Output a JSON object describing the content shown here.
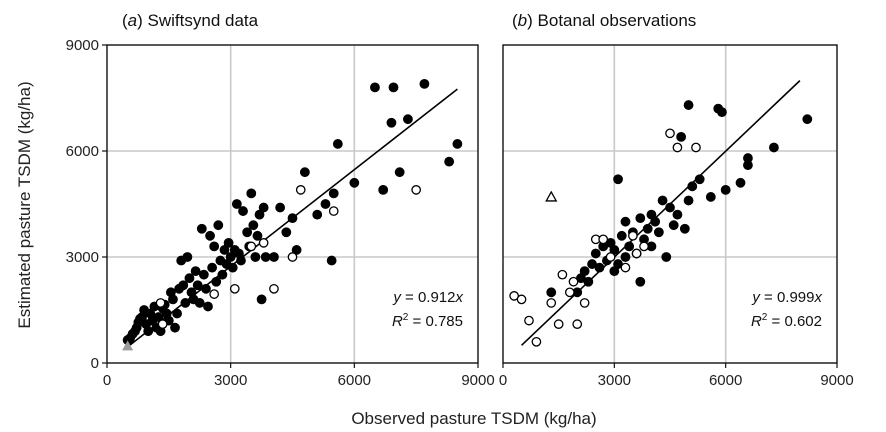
{
  "chart_data": [
    {
      "type": "scatter",
      "panel_label": "a",
      "title": "Swiftsynd data",
      "xlim": [
        0,
        9000
      ],
      "ylim": [
        0,
        9000
      ],
      "xticks": [
        "0",
        "3000",
        "6000",
        "9000"
      ],
      "yticks": [
        "0",
        "3000",
        "6000",
        "9000"
      ],
      "grid": true,
      "fit": {
        "slope": 0.912,
        "x_from": 450,
        "x_to": 8500
      },
      "equation": {
        "y_var": "y",
        "y_rest": " = 0.912",
        "y_x": "x",
        "r_var": "R",
        "r_rest": " = 0.785"
      },
      "series": [
        {
          "marker": "filled-circle",
          "color": "#000000",
          "points": [
            [
              500,
              650
            ],
            [
              560,
              700
            ],
            [
              620,
              820
            ],
            [
              680,
              900
            ],
            [
              720,
              1000
            ],
            [
              760,
              1150
            ],
            [
              800,
              1250
            ],
            [
              850,
              1300
            ],
            [
              900,
              1500
            ],
            [
              950,
              1100
            ],
            [
              1000,
              900
            ],
            [
              1050,
              1400
            ],
            [
              1100,
              1200
            ],
            [
              1150,
              1600
            ],
            [
              1200,
              1000
            ],
            [
              1250,
              1300
            ],
            [
              1300,
              900
            ],
            [
              1350,
              1550
            ],
            [
              1400,
              1650
            ],
            [
              1450,
              1400
            ],
            [
              1500,
              1200
            ],
            [
              1550,
              2000
            ],
            [
              1600,
              1800
            ],
            [
              1650,
              1000
            ],
            [
              1700,
              1400
            ],
            [
              1750,
              2100
            ],
            [
              1800,
              2900
            ],
            [
              1850,
              2200
            ],
            [
              1900,
              1700
            ],
            [
              1950,
              3000
            ],
            [
              2000,
              2400
            ],
            [
              2050,
              2000
            ],
            [
              2100,
              1800
            ],
            [
              2150,
              2600
            ],
            [
              2200,
              2200
            ],
            [
              2250,
              1700
            ],
            [
              2300,
              3800
            ],
            [
              2350,
              2500
            ],
            [
              2400,
              2100
            ],
            [
              2450,
              1600
            ],
            [
              2500,
              3600
            ],
            [
              2550,
              2700
            ],
            [
              2600,
              3300
            ],
            [
              2650,
              2300
            ],
            [
              2700,
              3900
            ],
            [
              2750,
              2900
            ],
            [
              2800,
              2500
            ],
            [
              2850,
              3200
            ],
            [
              2900,
              2800
            ],
            [
              2950,
              3400
            ],
            [
              3000,
              3000
            ],
            [
              3050,
              2700
            ],
            [
              3100,
              3200
            ],
            [
              3150,
              4500
            ],
            [
              3200,
              3100
            ],
            [
              3250,
              2900
            ],
            [
              3300,
              4300
            ],
            [
              3400,
              3700
            ],
            [
              3450,
              3300
            ],
            [
              3500,
              4800
            ],
            [
              3550,
              3900
            ],
            [
              3600,
              3000
            ],
            [
              3650,
              3600
            ],
            [
              3700,
              4200
            ],
            [
              3750,
              1800
            ],
            [
              3800,
              4400
            ],
            [
              3850,
              3000
            ],
            [
              4050,
              3000
            ],
            [
              4200,
              4400
            ],
            [
              4350,
              3700
            ],
            [
              4500,
              4100
            ],
            [
              4600,
              3200
            ],
            [
              4800,
              5400
            ],
            [
              5100,
              4200
            ],
            [
              5300,
              4500
            ],
            [
              5450,
              2900
            ],
            [
              5500,
              4800
            ],
            [
              5600,
              6200
            ],
            [
              6000,
              5100
            ],
            [
              6500,
              7800
            ],
            [
              6700,
              4900
            ],
            [
              6900,
              6800
            ],
            [
              6950,
              7800
            ],
            [
              7100,
              5400
            ],
            [
              7300,
              6900
            ],
            [
              7700,
              7900
            ],
            [
              8300,
              5700
            ],
            [
              8500,
              6200
            ]
          ]
        },
        {
          "marker": "open-circle",
          "color": "#000000",
          "points": [
            [
              1300,
              1700
            ],
            [
              1350,
              1100
            ],
            [
              2600,
              1950
            ],
            [
              3100,
              2100
            ],
            [
              3500,
              3300
            ],
            [
              3800,
              3400
            ],
            [
              4050,
              2100
            ],
            [
              4500,
              3000
            ],
            [
              4700,
              4900
            ],
            [
              5500,
              4300
            ],
            [
              7500,
              4900
            ]
          ]
        },
        {
          "marker": "triangle",
          "color": "#9a9a9a",
          "points": [
            [
              500,
              480
            ]
          ]
        }
      ]
    },
    {
      "type": "scatter",
      "panel_label": "b",
      "title": "Botanal observations",
      "xlim": [
        0,
        9000
      ],
      "ylim": [
        0,
        9000
      ],
      "xticks": [
        "0",
        "3000",
        "6000",
        "9000"
      ],
      "yticks": [
        "0",
        "3000",
        "6000",
        "9000"
      ],
      "grid": true,
      "fit": {
        "slope": 0.999,
        "x_from": 500,
        "x_to": 8000
      },
      "equation": {
        "y_var": "y",
        "y_rest": " = 0.999",
        "y_x": "x",
        "r_var": "R",
        "r_rest": " = 0.602"
      },
      "series": [
        {
          "marker": "filled-circle",
          "color": "#000000",
          "points": [
            [
              1300,
              2000
            ],
            [
              2000,
              2000
            ],
            [
              2100,
              2400
            ],
            [
              2200,
              2600
            ],
            [
              2300,
              2300
            ],
            [
              2400,
              2800
            ],
            [
              2500,
              3100
            ],
            [
              2600,
              2700
            ],
            [
              2700,
              3300
            ],
            [
              2800,
              2900
            ],
            [
              2900,
              3400
            ],
            [
              3000,
              2600
            ],
            [
              3000,
              3200
            ],
            [
              3100,
              5200
            ],
            [
              3100,
              2800
            ],
            [
              3200,
              3600
            ],
            [
              3300,
              3000
            ],
            [
              3300,
              4000
            ],
            [
              3400,
              3300
            ],
            [
              3500,
              3700
            ],
            [
              3600,
              3100
            ],
            [
              3700,
              4100
            ],
            [
              3700,
              2300
            ],
            [
              3800,
              3500
            ],
            [
              3900,
              3800
            ],
            [
              4000,
              3300
            ],
            [
              4000,
              4200
            ],
            [
              4100,
              4000
            ],
            [
              4200,
              3700
            ],
            [
              4300,
              4600
            ],
            [
              4400,
              3000
            ],
            [
              4500,
              4400
            ],
            [
              4600,
              3900
            ],
            [
              4700,
              4200
            ],
            [
              4800,
              6400
            ],
            [
              4900,
              3800
            ],
            [
              5000,
              7300
            ],
            [
              5000,
              4600
            ],
            [
              5100,
              5000
            ],
            [
              5300,
              5200
            ],
            [
              5600,
              4700
            ],
            [
              5800,
              7200
            ],
            [
              5900,
              7100
            ],
            [
              6000,
              4900
            ],
            [
              6400,
              5100
            ],
            [
              6600,
              5800
            ],
            [
              6600,
              5600
            ],
            [
              7300,
              6100
            ],
            [
              8200,
              6900
            ]
          ]
        },
        {
          "marker": "open-circle",
          "color": "#000000",
          "points": [
            [
              300,
              1900
            ],
            [
              500,
              1800
            ],
            [
              700,
              1200
            ],
            [
              900,
              600
            ],
            [
              1300,
              1700
            ],
            [
              1500,
              1100
            ],
            [
              1600,
              2500
            ],
            [
              1800,
              2000
            ],
            [
              1900,
              2300
            ],
            [
              2000,
              1100
            ],
            [
              2200,
              1700
            ],
            [
              2500,
              3500
            ],
            [
              2700,
              3500
            ],
            [
              2900,
              3000
            ],
            [
              3300,
              2700
            ],
            [
              3500,
              3600
            ],
            [
              3600,
              3100
            ],
            [
              3800,
              3300
            ],
            [
              4500,
              6500
            ],
            [
              4700,
              6100
            ],
            [
              5200,
              6100
            ]
          ]
        },
        {
          "marker": "open-triangle",
          "color": "#000000",
          "points": [
            [
              1300,
              4700
            ]
          ]
        }
      ]
    }
  ],
  "axes": {
    "xlabel": "Observed pasture TSDM (kg/ha)",
    "ylabel": "Estimated pasture TSDM (kg/ha)"
  },
  "colors": {
    "grid": "#c8c8c8",
    "frame": "#111111",
    "fit_line": "#000000"
  }
}
